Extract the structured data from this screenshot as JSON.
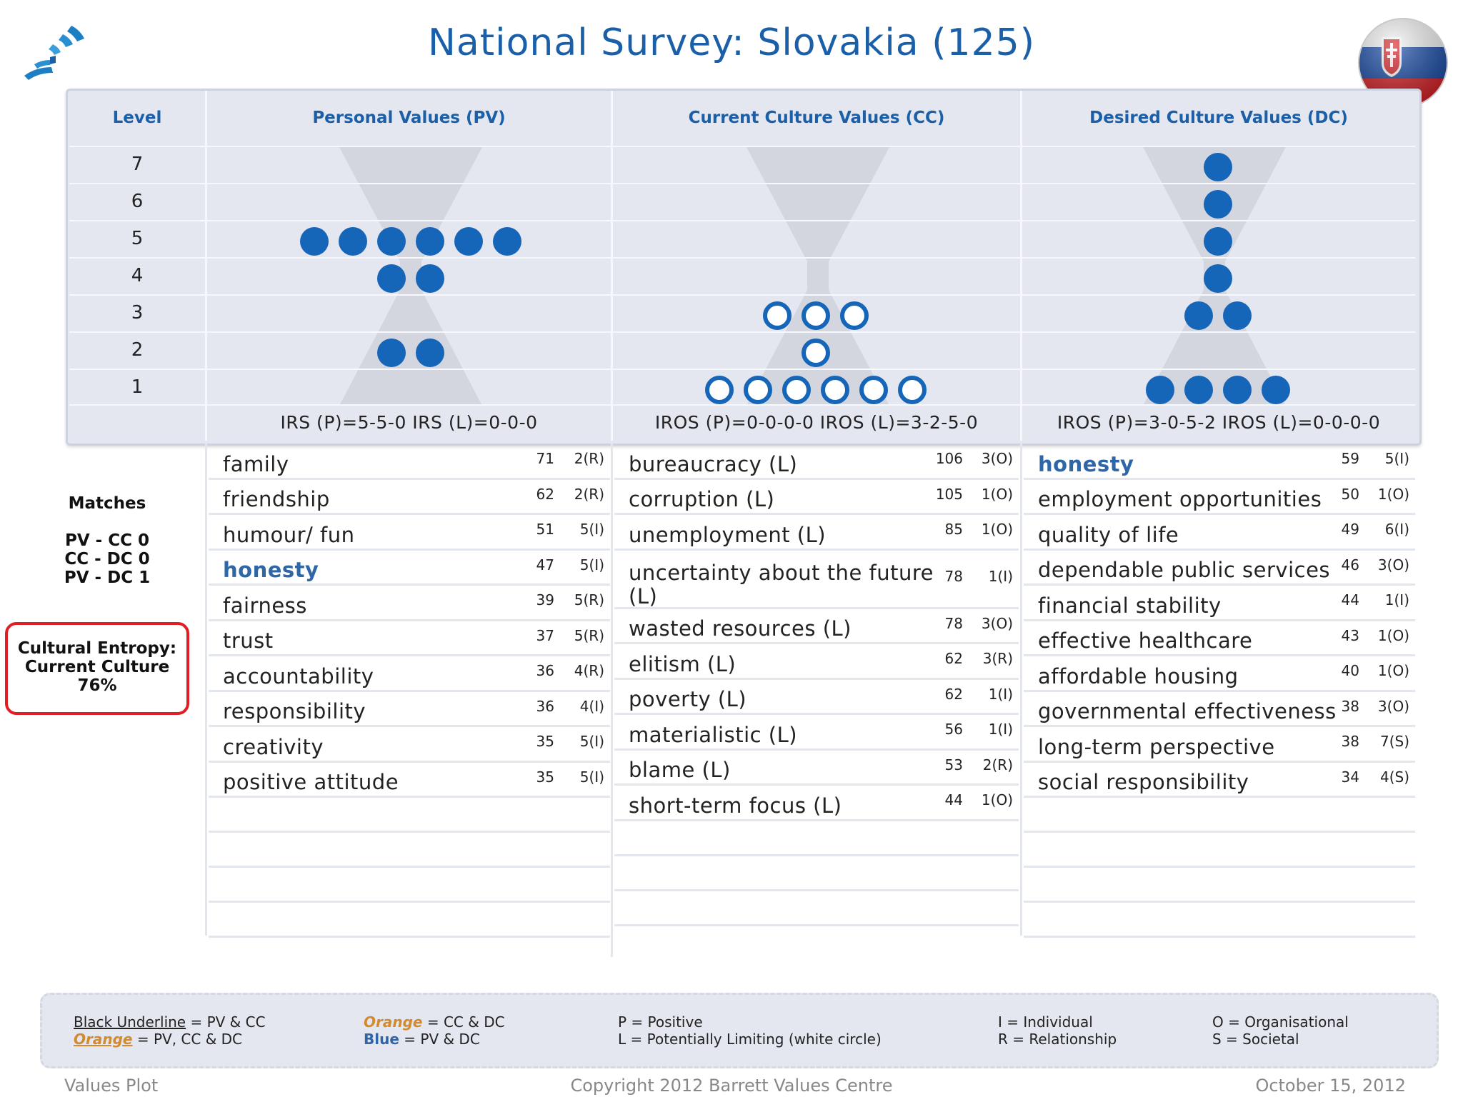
{
  "title": "National Survey: Slovakia (125)",
  "colors": {
    "accent": "#1a5fa8",
    "dot": "#1565b8",
    "entropy_border": "#e01e25",
    "orange": "#d4892a"
  },
  "grid": {
    "level_header": "Level",
    "levels": [
      "7",
      "6",
      "5",
      "4",
      "3",
      "2",
      "1"
    ],
    "columns": [
      {
        "header": "Personal Values (PV)",
        "irs": "IRS (P)=5-5-0  IRS (L)=0-0-0",
        "dots": [
          {
            "level": 5,
            "p": 6,
            "l": 0
          },
          {
            "level": 4,
            "p": 2,
            "l": 0
          },
          {
            "level": 2,
            "p": 2,
            "l": 0
          }
        ]
      },
      {
        "header": "Current Culture Values (CC)",
        "irs": "IROS (P)=0-0-0-0  IROS (L)=3-2-5-0",
        "dots": [
          {
            "level": 3,
            "p": 0,
            "l": 3
          },
          {
            "level": 2,
            "p": 0,
            "l": 1
          },
          {
            "level": 1,
            "p": 0,
            "l": 6
          }
        ]
      },
      {
        "header": "Desired Culture Values (DC)",
        "irs": "IROS (P)=3-0-5-2  IROS (L)=0-0-0-0",
        "dots": [
          {
            "level": 7,
            "p": 1,
            "l": 0
          },
          {
            "level": 6,
            "p": 1,
            "l": 0
          },
          {
            "level": 5,
            "p": 1,
            "l": 0
          },
          {
            "level": 4,
            "p": 1,
            "l": 0
          },
          {
            "level": 3,
            "p": 2,
            "l": 0
          },
          {
            "level": 1,
            "p": 4,
            "l": 0
          }
        ]
      }
    ]
  },
  "lists": {
    "pv": [
      {
        "name": "family",
        "count": "71",
        "type": "2(R)"
      },
      {
        "name": "friendship",
        "count": "62",
        "type": "2(R)"
      },
      {
        "name": "humour/ fun",
        "count": "51",
        "type": "5(I)"
      },
      {
        "name": "honesty",
        "count": "47",
        "type": "5(I)",
        "blue": true
      },
      {
        "name": "fairness",
        "count": "39",
        "type": "5(R)"
      },
      {
        "name": "trust",
        "count": "37",
        "type": "5(R)"
      },
      {
        "name": "accountability",
        "count": "36",
        "type": "4(R)"
      },
      {
        "name": "responsibility",
        "count": "36",
        "type": "4(I)"
      },
      {
        "name": "creativity",
        "count": "35",
        "type": "5(I)"
      },
      {
        "name": "positive attitude",
        "count": "35",
        "type": "5(I)"
      }
    ],
    "cc": [
      {
        "name": "bureaucracy (L)",
        "count": "106",
        "type": "3(O)"
      },
      {
        "name": "corruption (L)",
        "count": "105",
        "type": "1(O)"
      },
      {
        "name": "unemployment (L)",
        "count": "85",
        "type": "1(O)"
      },
      {
        "name": "uncertainty about the future (L)",
        "count": "78",
        "type": "1(I)",
        "two": true
      },
      {
        "name": "wasted resources (L)",
        "count": "78",
        "type": "3(O)"
      },
      {
        "name": "elitism (L)",
        "count": "62",
        "type": "3(R)"
      },
      {
        "name": "poverty (L)",
        "count": "62",
        "type": "1(I)"
      },
      {
        "name": "materialistic (L)",
        "count": "56",
        "type": "1(I)"
      },
      {
        "name": "blame (L)",
        "count": "53",
        "type": "2(R)"
      },
      {
        "name": "short-term focus (L)",
        "count": "44",
        "type": "1(O)"
      }
    ],
    "dc": [
      {
        "name": "honesty",
        "count": "59",
        "type": "5(I)",
        "blue": true
      },
      {
        "name": "employment opportunities",
        "count": "50",
        "type": "1(O)"
      },
      {
        "name": "quality of life",
        "count": "49",
        "type": "6(I)"
      },
      {
        "name": "dependable public services",
        "count": "46",
        "type": "3(O)"
      },
      {
        "name": "financial stability",
        "count": "44",
        "type": "1(I)"
      },
      {
        "name": "effective healthcare",
        "count": "43",
        "type": "1(O)"
      },
      {
        "name": "affordable housing",
        "count": "40",
        "type": "1(O)"
      },
      {
        "name": "governmental effectiveness",
        "count": "38",
        "type": "3(O)"
      },
      {
        "name": "long-term perspective",
        "count": "38",
        "type": "7(S)"
      },
      {
        "name": "social responsibility",
        "count": "34",
        "type": "4(S)"
      }
    ]
  },
  "matches": {
    "heading": "Matches",
    "pv_cc": "PV - CC 0",
    "cc_dc": "CC - DC 0",
    "pv_dc": "PV - DC 1"
  },
  "entropy": {
    "line1": "Cultural Entropy:",
    "line2": "Current Culture",
    "value": "76%"
  },
  "legend": {
    "c1a_u": "Black Underline",
    "c1a_t": " = PV & CC",
    "c1b_o": "Orange",
    "c1b_t": " = PV, CC & DC",
    "c2a_o": "Orange",
    "c2a_t": " = CC & DC",
    "c2b_b": "Blue",
    "c2b_t": " = PV & DC",
    "c3a": "P = Positive",
    "c3b": "L = Potentially Limiting (white circle)",
    "c4a": "I = Individual",
    "c4b": "R = Relationship",
    "c5a": "O = Organisational",
    "c5b": "S = Societal"
  },
  "footer": {
    "left": "Values Plot",
    "center": "Copyright 2012 Barrett Values Centre",
    "right": "October 15, 2012"
  }
}
